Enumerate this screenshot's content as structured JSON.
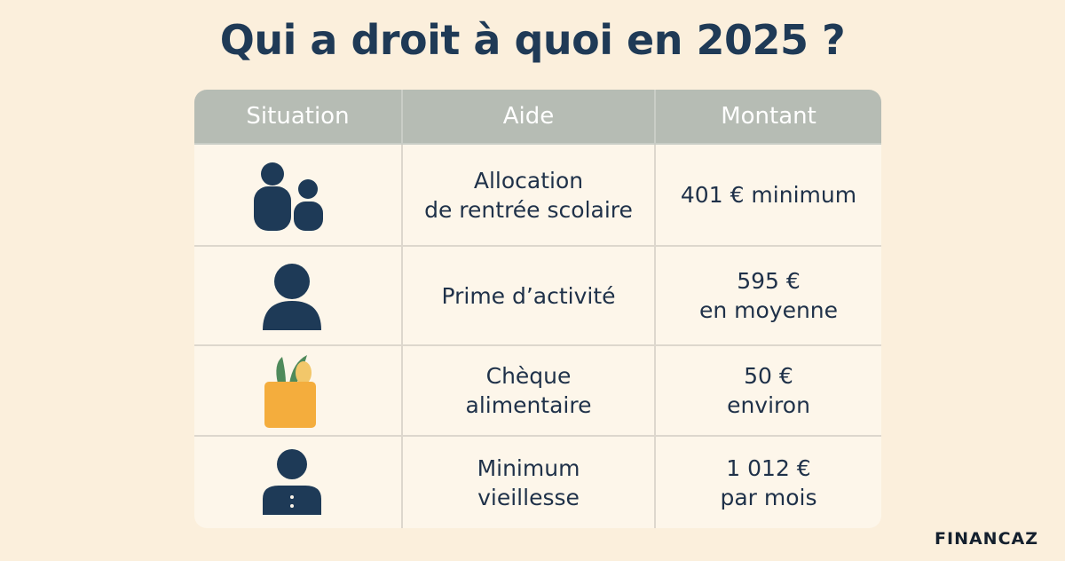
{
  "title": "Qui a droit à quoi en 2025 ?",
  "table": {
    "headers": [
      "Situation",
      "Aide",
      "Montant"
    ],
    "rows": [
      {
        "aide": [
          "Allocation",
          "de rentrée scolaire"
        ],
        "montant": [
          "401 € minimum"
        ]
      },
      {
        "aide": [
          "Prime d’activité"
        ],
        "montant": [
          "595 €",
          "en moyenne"
        ]
      },
      {
        "aide": [
          "Chèque",
          "alimentaire"
        ],
        "montant": [
          "50 €",
          "environ"
        ]
      },
      {
        "aide": [
          "Minimum",
          "vieillesse"
        ],
        "montant": [
          "1 012 €",
          "par mois"
        ]
      }
    ]
  },
  "brand": "FINANCAZ"
}
